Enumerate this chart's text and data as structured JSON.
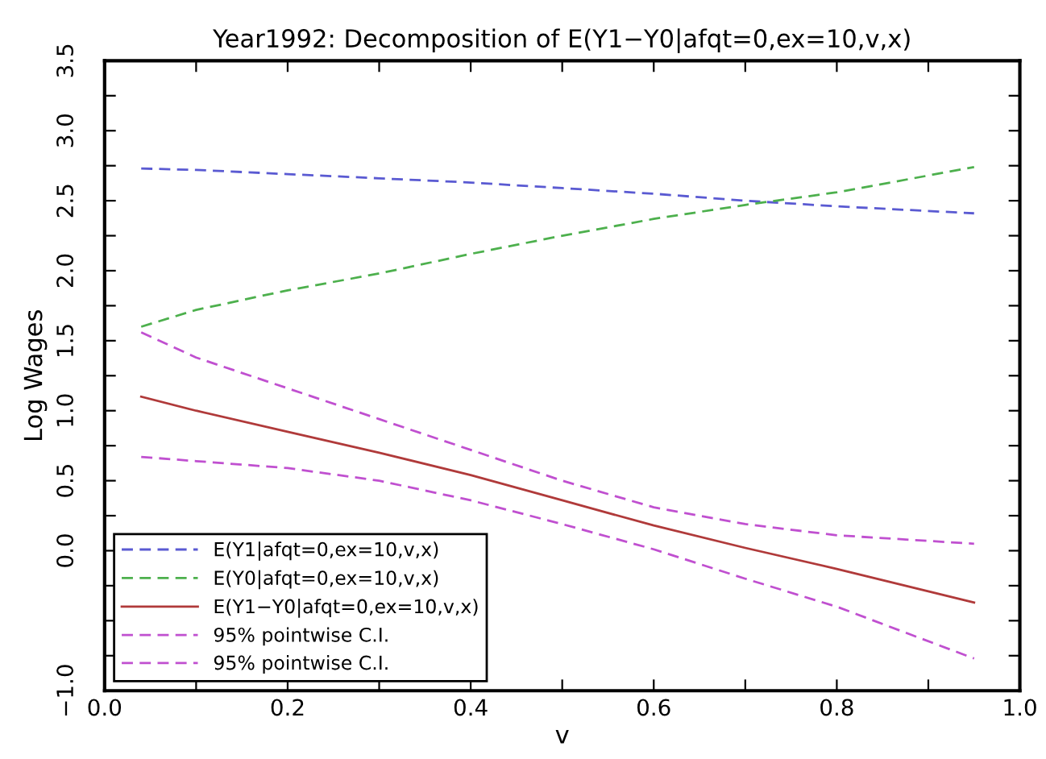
{
  "chart_data": {
    "type": "line",
    "title": "Year1992: Decomposition of E(Y1−Y0|afqt=0,ex=10,v,x)",
    "xlabel": "v",
    "ylabel": "Log Wages",
    "x": [
      0.04,
      0.1,
      0.2,
      0.3,
      0.4,
      0.5,
      0.6,
      0.7,
      0.8,
      0.95
    ],
    "series": [
      {
        "name": "E(Y1|afqt=0,ex=10,v,x)",
        "color": "#5a5ad2",
        "line_style": "dashed",
        "values": [
          2.73,
          2.72,
          2.69,
          2.66,
          2.63,
          2.59,
          2.55,
          2.5,
          2.46,
          2.41
        ]
      },
      {
        "name": "E(Y0|afqt=0,ex=10,v,x)",
        "color": "#4db04d",
        "line_style": "dashed",
        "values": [
          1.6,
          1.72,
          1.86,
          1.98,
          2.12,
          2.25,
          2.37,
          2.47,
          2.56,
          2.74
        ]
      },
      {
        "name": "E(Y1−Y0|afqt=0,ex=10,v,x)",
        "color": "#b03a3a",
        "line_style": "solid",
        "values": [
          1.1,
          1.0,
          0.85,
          0.7,
          0.54,
          0.36,
          0.18,
          0.02,
          -0.13,
          -0.37
        ]
      },
      {
        "name": "95% pointwise C.I.",
        "color": "#c050d0",
        "line_style": "dashed",
        "values": [
          1.56,
          1.38,
          1.16,
          0.94,
          0.72,
          0.5,
          0.31,
          0.19,
          0.11,
          0.05
        ]
      },
      {
        "name": "95% pointwise C.I.",
        "color": "#c050d0",
        "line_style": "dashed",
        "values": [
          0.67,
          0.64,
          0.59,
          0.5,
          0.36,
          0.19,
          0.01,
          -0.2,
          -0.4,
          -0.77
        ]
      }
    ],
    "xlim": [
      0.0,
      1.0
    ],
    "xticks": [
      {
        "value": 0.0,
        "label": "0.0"
      },
      {
        "value": 0.1,
        "label": null
      },
      {
        "value": 0.2,
        "label": "0.2"
      },
      {
        "value": 0.3,
        "label": null
      },
      {
        "value": 0.4,
        "label": "0.4"
      },
      {
        "value": 0.5,
        "label": null
      },
      {
        "value": 0.6,
        "label": "0.6"
      },
      {
        "value": 0.7,
        "label": null
      },
      {
        "value": 0.8,
        "label": "0.8"
      },
      {
        "value": 0.9,
        "label": null
      },
      {
        "value": 1.0,
        "label": "1.0"
      }
    ],
    "ylim": [
      -1.0,
      3.5
    ],
    "yticks": [
      {
        "value": -1.0,
        "label": "−1.0"
      },
      {
        "value": -0.75,
        "label": null
      },
      {
        "value": -0.5,
        "label": null
      },
      {
        "value": -0.25,
        "label": null
      },
      {
        "value": 0.0,
        "label": "0.0"
      },
      {
        "value": 0.25,
        "label": null
      },
      {
        "value": 0.5,
        "label": "0.5"
      },
      {
        "value": 0.75,
        "label": null
      },
      {
        "value": 1.0,
        "label": "1.0"
      },
      {
        "value": 1.25,
        "label": null
      },
      {
        "value": 1.5,
        "label": "1.5"
      },
      {
        "value": 1.75,
        "label": null
      },
      {
        "value": 2.0,
        "label": "2.0"
      },
      {
        "value": 2.25,
        "label": null
      },
      {
        "value": 2.5,
        "label": "2.5"
      },
      {
        "value": 2.75,
        "label": null
      },
      {
        "value": 3.0,
        "label": "3.0"
      },
      {
        "value": 3.25,
        "label": null
      },
      {
        "value": 3.5,
        "label": "3.5"
      }
    ],
    "grid": false,
    "legend": "bottom left",
    "marker": "none"
  }
}
